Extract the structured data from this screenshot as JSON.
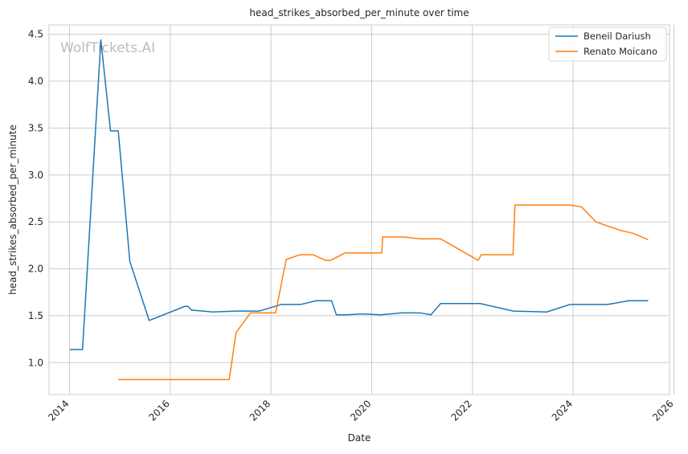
{
  "chart_data": {
    "type": "line",
    "title": "head_strikes_absorbed_per_minute over time",
    "xlabel": "Date",
    "ylabel": "head_strikes_absorbed_per_minute",
    "watermark": "WolfTickets.AI",
    "x_ticks": [
      "2014",
      "2016",
      "2018",
      "2020",
      "2022",
      "2024",
      "2026"
    ],
    "y_ticks": [
      "1.0",
      "1.5",
      "2.0",
      "2.5",
      "3.0",
      "3.5",
      "4.0",
      "4.5"
    ],
    "xlim": [
      "2013-08-05",
      "2025-11-30"
    ],
    "ylim": [
      0.66,
      4.6
    ],
    "grid": true,
    "legend_position": "top-right",
    "series": [
      {
        "name": "Beneil Dariush",
        "color": "#1f77b4",
        "points": [
          [
            "2014-01-04",
            1.14
          ],
          [
            "2014-04-05",
            1.14
          ],
          [
            "2014-08-16",
            4.44
          ],
          [
            "2014-10-25",
            3.47
          ],
          [
            "2014-12-20",
            3.47
          ],
          [
            "2015-03-14",
            2.08
          ],
          [
            "2015-08-01",
            1.45
          ],
          [
            "2016-04-16",
            1.6
          ],
          [
            "2016-05-08",
            1.6
          ],
          [
            "2016-06-04",
            1.56
          ],
          [
            "2016-11-05",
            1.54
          ],
          [
            "2017-04-22",
            1.55
          ],
          [
            "2017-10-07",
            1.55
          ],
          [
            "2018-03-17",
            1.62
          ],
          [
            "2018-08-04",
            1.62
          ],
          [
            "2018-11-24",
            1.66
          ],
          [
            "2019-03-16",
            1.66
          ],
          [
            "2019-04-20",
            1.51
          ],
          [
            "2019-07-06",
            1.51
          ],
          [
            "2019-10-26",
            1.52
          ],
          [
            "2020-03-07",
            1.51
          ],
          [
            "2020-08-08",
            1.53
          ],
          [
            "2020-12-19",
            1.53
          ],
          [
            "2021-03-06",
            1.51
          ],
          [
            "2021-05-15",
            1.63
          ],
          [
            "2022-02-26",
            1.63
          ],
          [
            "2022-10-22",
            1.55
          ],
          [
            "2023-06-24",
            1.54
          ],
          [
            "2023-12-09",
            1.62
          ],
          [
            "2024-09-07",
            1.62
          ],
          [
            "2025-02-08",
            1.66
          ],
          [
            "2025-06-28",
            1.66
          ]
        ]
      },
      {
        "name": "Renato Moicano",
        "color": "#ff7f0e",
        "points": [
          [
            "2014-12-20",
            0.82
          ],
          [
            "2017-03-04",
            0.82
          ],
          [
            "2017-04-22",
            1.32
          ],
          [
            "2017-08-05",
            1.53
          ],
          [
            "2018-02-03",
            1.53
          ],
          [
            "2018-04-21",
            2.1
          ],
          [
            "2018-07-28",
            2.15
          ],
          [
            "2018-11-03",
            2.15
          ],
          [
            "2019-02-02",
            2.09
          ],
          [
            "2019-03-09",
            2.09
          ],
          [
            "2019-06-22",
            2.17
          ],
          [
            "2020-03-14",
            2.17
          ],
          [
            "2020-03-21",
            2.34
          ],
          [
            "2020-08-15",
            2.34
          ],
          [
            "2020-12-19",
            2.32
          ],
          [
            "2021-05-15",
            2.32
          ],
          [
            "2022-02-12",
            2.09
          ],
          [
            "2022-03-05",
            2.15
          ],
          [
            "2022-10-22",
            2.15
          ],
          [
            "2022-11-05",
            2.68
          ],
          [
            "2023-12-09",
            2.68
          ],
          [
            "2024-03-02",
            2.66
          ],
          [
            "2024-06-15",
            2.5
          ],
          [
            "2024-12-07",
            2.41
          ],
          [
            "2025-03-08",
            2.38
          ],
          [
            "2025-06-28",
            2.31
          ]
        ]
      }
    ]
  }
}
